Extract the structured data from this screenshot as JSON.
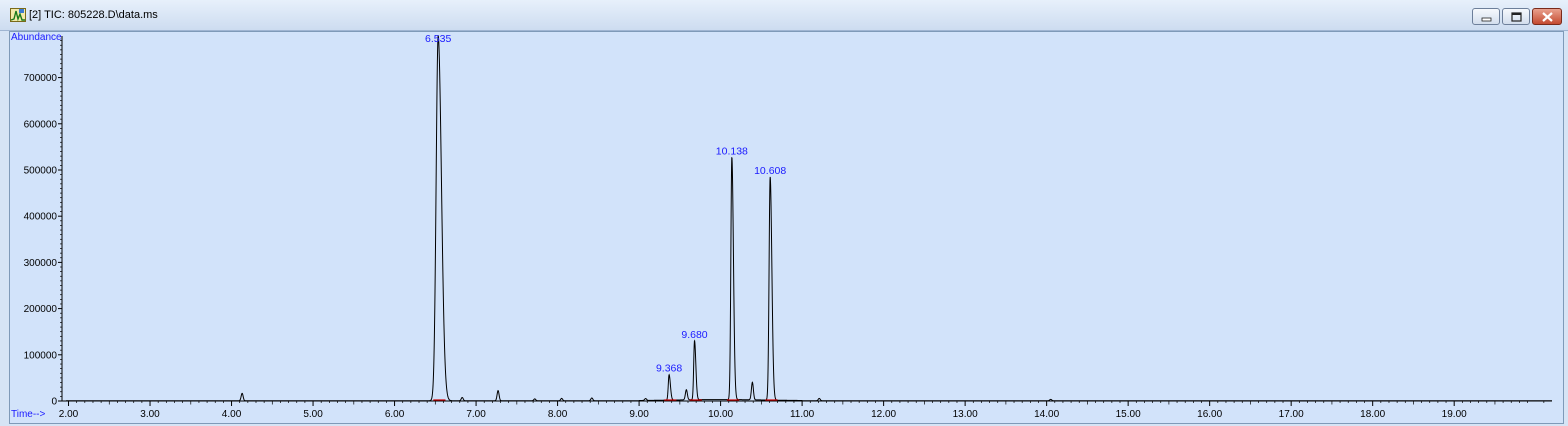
{
  "window": {
    "title": "[2] TIC: 805228.D\\data.ms",
    "icon": "chromatogram-app-icon",
    "controls": [
      "minimize",
      "maximize",
      "close"
    ]
  },
  "chart_data": {
    "type": "line",
    "ylabel": "Abundance",
    "xlabel": "Time-->",
    "xlim": [
      1.92,
      20.2
    ],
    "ylim": [
      0,
      790000
    ],
    "x_ticks": [
      "2.00",
      "3.00",
      "4.00",
      "5.00",
      "6.00",
      "7.00",
      "8.00",
      "9.00",
      "10.00",
      "11.00",
      "12.00",
      "13.00",
      "14.00",
      "15.00",
      "16.00",
      "17.00",
      "18.00",
      "19.00"
    ],
    "y_ticks": [
      "0",
      "100000",
      "200000",
      "300000",
      "400000",
      "500000",
      "600000",
      "700000"
    ],
    "x_tick_values": [
      2,
      3,
      4,
      5,
      6,
      7,
      8,
      9,
      10,
      11,
      12,
      13,
      14,
      15,
      16,
      17,
      18,
      19
    ],
    "y_tick_values": [
      0,
      100000,
      200000,
      300000,
      400000,
      500000,
      600000,
      700000
    ],
    "line_color": "#000000",
    "baseline_marker_color": "#cc0000",
    "peak_label_color": "#1a1aff",
    "labeled_peaks": [
      {
        "label": "6.535",
        "rt": 6.535,
        "height": 790000,
        "width": 0.025
      },
      {
        "label": "9.368",
        "rt": 9.368,
        "height": 55000,
        "width": 0.01
      },
      {
        "label": "9.680",
        "rt": 9.68,
        "height": 128000,
        "width": 0.01
      },
      {
        "label": "10.138",
        "rt": 10.138,
        "height": 525000,
        "width": 0.012
      },
      {
        "label": "10.608",
        "rt": 10.608,
        "height": 483000,
        "width": 0.013
      }
    ],
    "minor_peaks": [
      {
        "rt": 4.13,
        "height": 16000
      },
      {
        "rt": 6.83,
        "height": 7000
      },
      {
        "rt": 7.27,
        "height": 22000
      },
      {
        "rt": 7.72,
        "height": 4000
      },
      {
        "rt": 8.05,
        "height": 5000
      },
      {
        "rt": 8.42,
        "height": 6000
      },
      {
        "rt": 9.08,
        "height": 4000
      },
      {
        "rt": 9.58,
        "height": 22000
      },
      {
        "rt": 10.39,
        "height": 38000
      },
      {
        "rt": 11.21,
        "height": 5000
      },
      {
        "rt": 14.05,
        "height": 3000
      }
    ]
  }
}
